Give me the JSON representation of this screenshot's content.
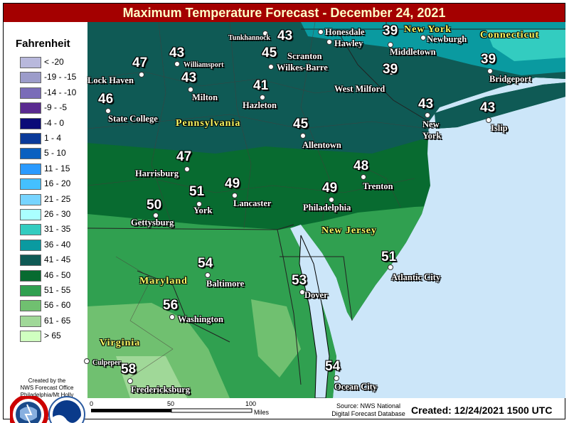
{
  "title": "Maximum Temperature Forecast - December 24, 2021",
  "legend": {
    "heading": "Fahrenheit",
    "items": [
      {
        "label": "< -20",
        "color": "#b8b8dc"
      },
      {
        "label": "-19 - -15",
        "color": "#9c9cca"
      },
      {
        "label": "-14 - -10",
        "color": "#7a6cb8"
      },
      {
        "label": "-9 - -5",
        "color": "#5a2a90"
      },
      {
        "label": "-4 - 0",
        "color": "#0a0a78"
      },
      {
        "label": "1 - 4",
        "color": "#0a3a9a"
      },
      {
        "label": "5 - 10",
        "color": "#0a60c0"
      },
      {
        "label": "11 - 15",
        "color": "#2a9aff"
      },
      {
        "label": "16 - 20",
        "color": "#44c0ff"
      },
      {
        "label": "21 - 25",
        "color": "#77d4ff"
      },
      {
        "label": "26 - 30",
        "color": "#aaffff"
      },
      {
        "label": "31 - 35",
        "color": "#33ccc0"
      },
      {
        "label": "36 - 40",
        "color": "#0a9aa0"
      },
      {
        "label": "41 - 45",
        "color": "#0f5a55"
      },
      {
        "label": "46 - 50",
        "color": "#086b30"
      },
      {
        "label": "51 - 55",
        "color": "#30a050"
      },
      {
        "label": "56 - 60",
        "color": "#70c070"
      },
      {
        "label": "61 - 65",
        "color": "#a0d898"
      },
      {
        "label": "> 65",
        "color": "#d0ffc0"
      }
    ]
  },
  "credit": {
    "line1": "Created by the",
    "line2": "NWS Forecast Office",
    "line3": "Philadelphia/Mt Holly",
    "logos": [
      "nws-logo",
      "noaa-logo"
    ]
  },
  "states": [
    "New York",
    "Connecticut",
    "Pennsylvania",
    "New Jersey",
    "Maryland",
    "Virginia"
  ],
  "cities": [
    {
      "name": "Tunkhannock",
      "temp": "43"
    },
    {
      "name": "Honesdale",
      "temp": ""
    },
    {
      "name": "Hawley",
      "temp": ""
    },
    {
      "name": "Newburgh",
      "temp": ""
    },
    {
      "name": "Middletown",
      "temp": "39"
    },
    {
      "name": "Scranton",
      "temp": "45"
    },
    {
      "name": "Wilkes-Barre",
      "temp": ""
    },
    {
      "name": "West Milford",
      "temp": "39"
    },
    {
      "name": "Williamsport",
      "temp": "43"
    },
    {
      "name": "Lock Haven",
      "temp": "47"
    },
    {
      "name": "Milton",
      "temp": "43"
    },
    {
      "name": "Hazleton",
      "temp": "41"
    },
    {
      "name": "State College",
      "temp": "46"
    },
    {
      "name": "Bridgeport",
      "temp": "39"
    },
    {
      "name": "New",
      "temp": "43"
    },
    {
      "name": "York",
      "temp": ""
    },
    {
      "name": "Islip",
      "temp": "43"
    },
    {
      "name": "Allentown",
      "temp": "45"
    },
    {
      "name": "Harrisburg",
      "temp": "47"
    },
    {
      "name": "Trenton",
      "temp": "48"
    },
    {
      "name": "York",
      "temp": "51"
    },
    {
      "name": "Lancaster",
      "temp": "49"
    },
    {
      "name": "Philadelphia",
      "temp": "49"
    },
    {
      "name": "Gettysburg",
      "temp": "50"
    },
    {
      "name": "Baltimore",
      "temp": "54"
    },
    {
      "name": "Atlantic City",
      "temp": "51"
    },
    {
      "name": "Dover",
      "temp": "53"
    },
    {
      "name": "Washington",
      "temp": "56"
    },
    {
      "name": "Culpeper",
      "temp": ""
    },
    {
      "name": "Fredericksburg",
      "temp": "58"
    },
    {
      "name": "Ocean City",
      "temp": "54"
    }
  ],
  "scale": {
    "ticks": [
      "0",
      "50",
      "100"
    ],
    "unit": "Miles"
  },
  "source": {
    "line1": "Source: NWS National",
    "line2": "Digital Forecast Database"
  },
  "created": "Created: 12/24/2021 1500 UTC",
  "colors": {
    "title_bar": "#a40000",
    "ocean": "#cce6f9"
  }
}
